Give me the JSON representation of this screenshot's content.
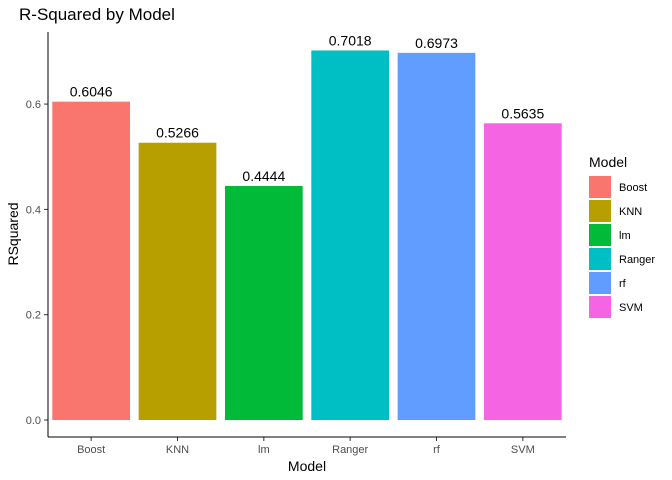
{
  "chart_data": {
    "type": "bar",
    "title": "R-Squared by Model",
    "xlabel": "Model",
    "ylabel": "RSquared",
    "categories": [
      "Boost",
      "KNN",
      "lm",
      "Ranger",
      "rf",
      "SVM"
    ],
    "values": [
      0.6046,
      0.5266,
      0.4444,
      0.7018,
      0.6973,
      0.5635
    ],
    "data_labels": [
      "0.6046",
      "0.5266",
      "0.4444",
      "0.7018",
      "0.6973",
      "0.5635"
    ],
    "colors": [
      "#F8766D",
      "#B79F00",
      "#00BA38",
      "#00BFC4",
      "#619CFF",
      "#F564E3"
    ],
    "y_ticks": [
      0.0,
      0.2,
      0.4,
      0.6
    ],
    "y_tick_labels": [
      "0.0",
      "0.2",
      "0.4",
      "0.6"
    ],
    "ylim": [
      0,
      0.7369
    ],
    "grid": false,
    "legend": {
      "title": "Model",
      "placement": "right",
      "entries": [
        "Boost",
        "KNN",
        "lm",
        "Ranger",
        "rf",
        "SVM"
      ]
    }
  }
}
